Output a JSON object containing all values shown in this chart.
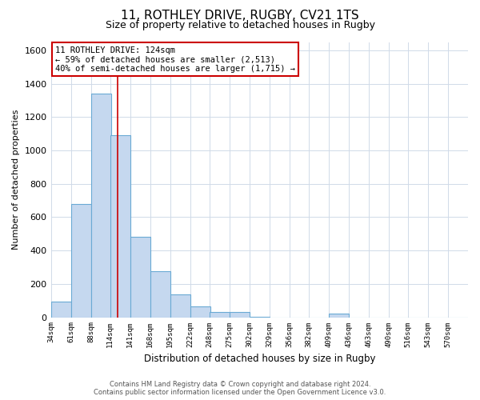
{
  "title": "11, ROTHLEY DRIVE, RUGBY, CV21 1TS",
  "subtitle": "Size of property relative to detached houses in Rugby",
  "xlabel": "Distribution of detached houses by size in Rugby",
  "ylabel": "Number of detached properties",
  "bar_labels": [
    "34sqm",
    "61sqm",
    "88sqm",
    "114sqm",
    "141sqm",
    "168sqm",
    "195sqm",
    "222sqm",
    "248sqm",
    "275sqm",
    "302sqm",
    "329sqm",
    "356sqm",
    "382sqm",
    "409sqm",
    "436sqm",
    "463sqm",
    "490sqm",
    "516sqm",
    "543sqm",
    "570sqm"
  ],
  "bar_values": [
    95,
    680,
    1340,
    1090,
    480,
    275,
    135,
    65,
    30,
    30,
    5,
    0,
    0,
    0,
    20,
    0,
    0,
    0,
    0,
    0,
    0
  ],
  "bar_color": "#c5d8ef",
  "bar_edge_color": "#6aaad4",
  "grid_color": "#d0dae8",
  "background_color": "#ffffff",
  "property_size_x": 124,
  "property_label": "11 ROTHLEY DRIVE: 124sqm",
  "annotation_line1": "← 59% of detached houses are smaller (2,513)",
  "annotation_line2": "40% of semi-detached houses are larger (1,715) →",
  "red_line_color": "#cc0000",
  "annotation_box_color": "#ffffff",
  "annotation_box_edge": "#cc0000",
  "ylim": [
    0,
    1650
  ],
  "yticks": [
    0,
    200,
    400,
    600,
    800,
    1000,
    1200,
    1400,
    1600
  ],
  "footer_line1": "Contains HM Land Registry data © Crown copyright and database right 2024.",
  "footer_line2": "Contains public sector information licensed under the Open Government Licence v3.0.",
  "bin_width": 27,
  "xlim_left": 34,
  "xlim_right": 597
}
